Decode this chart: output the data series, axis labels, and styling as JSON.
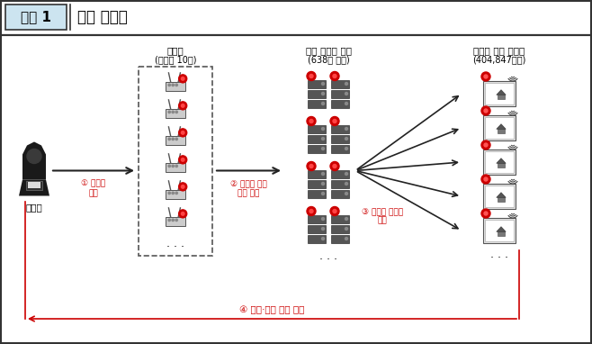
{
  "title_label": "붙임 1",
  "title_text": "사건 개요도",
  "suspect_label": "피의자",
  "router_group_title": "경유지",
  "router_group_subtitle": "(공유기 10개)",
  "server_group_title": "피해 아파트 서버",
  "server_group_subtitle": "(638개 단지)",
  "wallpad_group_title": "주거지 내부 월패드",
  "wallpad_group_subtitle": "(404,847가구)",
  "step1_label": "① 공유기\n해킹",
  "step2_label": "② 아파트 단지\n서버 침입",
  "step3_label": "③ 월패드 내부망\n침입",
  "step4_label": "④ 영상·사진 자료 유출",
  "bg_color": "#ffffff",
  "arrow_color": "#222222",
  "red_color": "#cc0000",
  "router_count": 6,
  "server_count": 4,
  "wallpad_count": 5,
  "fig_w": 6.58,
  "fig_h": 3.82,
  "dpi": 100
}
